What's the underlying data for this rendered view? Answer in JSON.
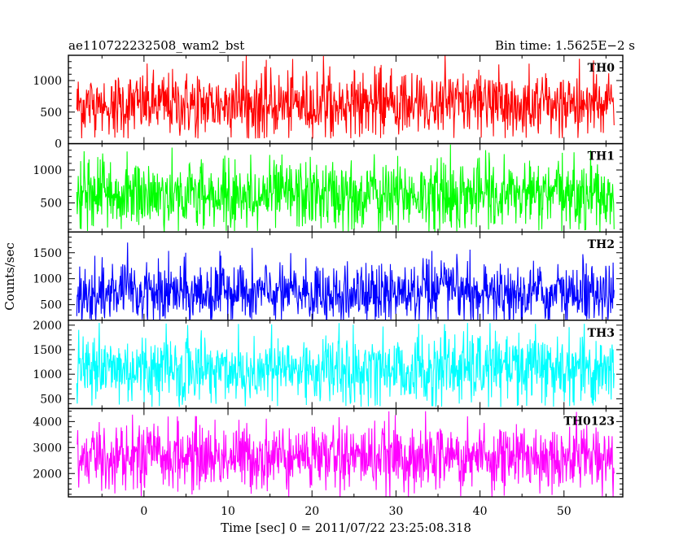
{
  "chart_data": {
    "type": "line",
    "title_left": "ae110722232508_wam2_bst",
    "title_right": "Bin time: 1.5625E−2 s",
    "xlabel": "Time [sec] 0 = 2011/07/22 23:25:08.318",
    "ylabel": "Counts/sec",
    "xlim": [
      -9,
      57
    ],
    "data_xrange": [
      -8,
      56
    ],
    "x_ticks": [
      0,
      10,
      20,
      30,
      40,
      50
    ],
    "panels": [
      {
        "name": "TH0",
        "color": "#ff0000",
        "ylim": [
          0,
          1400
        ],
        "yticks": [
          0,
          500,
          1000
        ],
        "mean": 620,
        "spread": 260,
        "minv": 80,
        "maxv": 1400
      },
      {
        "name": "TH1",
        "color": "#00ff00",
        "ylim": [
          60,
          1400
        ],
        "yticks": [
          500,
          1000
        ],
        "mean": 620,
        "spread": 260,
        "minv": 60,
        "maxv": 1400
      },
      {
        "name": "TH2",
        "color": "#0000ff",
        "ylim": [
          200,
          1900
        ],
        "yticks": [
          500,
          1000,
          1500
        ],
        "mean": 720,
        "spread": 300,
        "minv": 180,
        "maxv": 1750
      },
      {
        "name": "TH3",
        "color": "#00ffff",
        "ylim": [
          300,
          2100
        ],
        "yticks": [
          500,
          1000,
          1500,
          2000
        ],
        "mean": 1100,
        "spread": 380,
        "minv": 330,
        "maxv": 2050
      },
      {
        "name": "TH0123",
        "color": "#ff00ff",
        "ylim": [
          1100,
          4500
        ],
        "yticks": [
          2000,
          3000,
          4000
        ],
        "mean": 2650,
        "spread": 650,
        "minv": 1100,
        "maxv": 4400
      }
    ]
  }
}
